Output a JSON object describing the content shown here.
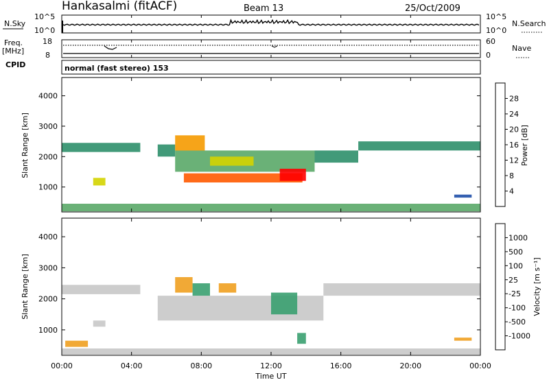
{
  "header": {
    "station": "Hankasalmi (fitACF)",
    "beam": "Beam 13",
    "date": "25/Oct/2009"
  },
  "noise_panel": {
    "left_label": "N.Sky",
    "left_ticks": [
      "10^5",
      "10^0"
    ],
    "right_label": "N.Search",
    "right_ticks": [
      "10^5",
      "10^0"
    ]
  },
  "freq_panel": {
    "left_label_1": "Freq.",
    "left_label_2": "[MHz]",
    "left_ticks": [
      "18",
      "8"
    ],
    "right_label": "Nave",
    "right_ticks": [
      "60",
      "0"
    ]
  },
  "cpid": {
    "label": "CPID",
    "mode_text": "normal (fast stereo) 153"
  },
  "chart_data": [
    {
      "type": "heatmap",
      "name": "power",
      "ylabel": "Slant Range [km]",
      "ylim": [
        180,
        4600
      ],
      "yticks": [
        1000,
        2000,
        3000,
        4000
      ],
      "xlim": [
        0,
        24
      ],
      "colorbar_label": "Power [dB]",
      "colorbar_ticks": [
        4,
        8,
        12,
        16,
        20,
        24,
        28
      ],
      "colorbar_colors": [
        "#0000ff",
        "#1f4fa8",
        "#2e8f6a",
        "#5aa868",
        "#d4d400",
        "#f59a00",
        "#ff5a00",
        "#ff0000"
      ],
      "bands": [
        {
          "t": [
            0.0,
            4.5
          ],
          "r": [
            2150,
            2450
          ],
          "level": 8
        },
        {
          "t": [
            5.5,
            6.5
          ],
          "r": [
            2000,
            2400
          ],
          "level": 8
        },
        {
          "t": [
            6.5,
            14.5
          ],
          "r": [
            1500,
            2200
          ],
          "level": 12
        },
        {
          "t": [
            7.0,
            13.8
          ],
          "r": [
            1150,
            1450
          ],
          "level": 24
        },
        {
          "t": [
            6.5,
            8.2
          ],
          "r": [
            2200,
            2700
          ],
          "level": 20
        },
        {
          "t": [
            8.5,
            11.0
          ],
          "r": [
            1700,
            2000
          ],
          "level": 16
        },
        {
          "t": [
            12.5,
            14.0
          ],
          "r": [
            1200,
            1600
          ],
          "level": 28
        },
        {
          "t": [
            14.5,
            17.0
          ],
          "r": [
            1800,
            2200
          ],
          "level": 8
        },
        {
          "t": [
            17.0,
            24.0
          ],
          "r": [
            2200,
            2500
          ],
          "level": 8
        },
        {
          "t": [
            0.0,
            24.0
          ],
          "r": [
            200,
            450
          ],
          "level": 12
        },
        {
          "t": [
            1.8,
            2.5
          ],
          "r": [
            1050,
            1300
          ],
          "level": 16
        },
        {
          "t": [
            22.5,
            23.5
          ],
          "r": [
            650,
            750
          ],
          "level": 4
        }
      ]
    },
    {
      "type": "heatmap",
      "name": "velocity",
      "ylabel": "Slant Range [km]",
      "xlabel": "Time UT",
      "ylim": [
        180,
        4600
      ],
      "yticks": [
        1000,
        2000,
        3000,
        4000
      ],
      "xlim": [
        0,
        24
      ],
      "xticks": [
        "00:00",
        "04:00",
        "08:00",
        "12:00",
        "16:00",
        "20:00",
        "00:00"
      ],
      "colorbar_label": "Velocity [m s⁻¹]",
      "colorbar_ticks": [
        1000,
        500,
        100,
        25,
        -25,
        -100,
        -500,
        -1000
      ],
      "colorbar_colors": [
        "#2030c0",
        "#2f6fb0",
        "#3aa070",
        "#55c030",
        "#c8c8c8",
        "#c8c8c8",
        "#f0a020",
        "#f07010",
        "#ff0000"
      ],
      "bands": [
        {
          "t": [
            0.0,
            4.5
          ],
          "r": [
            2150,
            2450
          ],
          "level": 0
        },
        {
          "t": [
            5.5,
            15.0
          ],
          "r": [
            1300,
            2100
          ],
          "level": 0
        },
        {
          "t": [
            15.0,
            24.0
          ],
          "r": [
            2100,
            2500
          ],
          "level": 0
        },
        {
          "t": [
            6.5,
            7.5
          ],
          "r": [
            2200,
            2700
          ],
          "level": -500
        },
        {
          "t": [
            7.5,
            8.5
          ],
          "r": [
            2100,
            2500
          ],
          "level": 100
        },
        {
          "t": [
            9.0,
            10.0
          ],
          "r": [
            2200,
            2500
          ],
          "level": -500
        },
        {
          "t": [
            12.0,
            13.5
          ],
          "r": [
            1500,
            2200
          ],
          "level": 100
        },
        {
          "t": [
            0.0,
            24.0
          ],
          "r": [
            200,
            400
          ],
          "level": -100
        },
        {
          "t": [
            0.2,
            1.5
          ],
          "r": [
            450,
            650
          ],
          "level": -500
        },
        {
          "t": [
            1.8,
            2.5
          ],
          "r": [
            1100,
            1300
          ],
          "level": -100
        },
        {
          "t": [
            13.5,
            14.0
          ],
          "r": [
            550,
            900
          ],
          "level": 100
        },
        {
          "t": [
            22.5,
            23.5
          ],
          "r": [
            650,
            750
          ],
          "level": -500
        }
      ]
    }
  ]
}
